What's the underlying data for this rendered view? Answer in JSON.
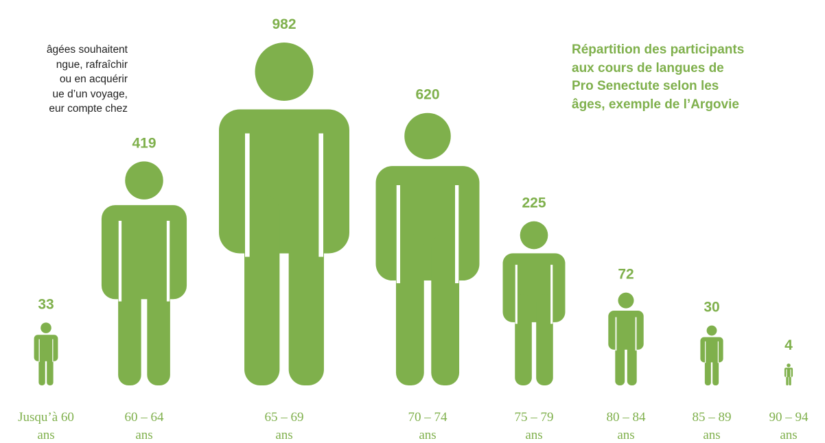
{
  "colors": {
    "accent": "#7fb04c",
    "label": "#7fb04c",
    "text": "#222222"
  },
  "intro_text": [
    "âgées souhaitent",
    "ngue,   rafraîchir",
    "ou  en  acquérir",
    "ue  d’un  voyage,",
    "eur compte chez"
  ],
  "title_lines": [
    "Répartition des participants",
    "aux cours de langues de",
    "Pro Senectute selon les",
    "âges, exemple de l’Argovie"
  ],
  "chart_data": {
    "type": "pictogram",
    "title": "Répartition des participants aux cours de langues de Pro Senectute selon les âges, exemple de l’Argovie",
    "icon": "person-icon",
    "categories": [
      [
        "Jusqu’à 60",
        "ans"
      ],
      [
        "60 – 64",
        "ans"
      ],
      [
        "65 – 69",
        "ans"
      ],
      [
        "70 – 74",
        "ans"
      ],
      [
        "75 – 79",
        "ans"
      ],
      [
        "80 – 84",
        "ans"
      ],
      [
        "85 – 89",
        "ans"
      ],
      [
        "90 – 94",
        "ans"
      ]
    ],
    "values": [
      33,
      419,
      982,
      620,
      225,
      72,
      30,
      4
    ]
  }
}
